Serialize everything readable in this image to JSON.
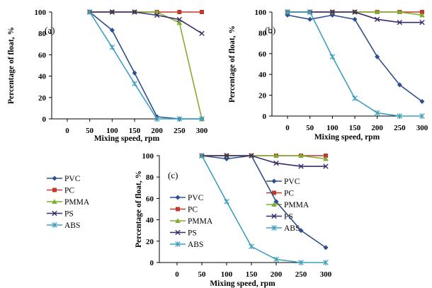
{
  "colors": {
    "PVC": "#2F4F8F",
    "PC": "#C0392B",
    "PMMA": "#7FAE2E",
    "PS": "#3B2A6B",
    "ABS": "#3E9FBF"
  },
  "markers": {
    "PVC": "diamond",
    "PC": "square",
    "PMMA": "triangle",
    "PS": "x",
    "ABS": "cross"
  },
  "chart_data": [
    {
      "type": "line",
      "panel": "(a)",
      "xlabel": "Mixing speed, rpm",
      "ylabel": "Percentage of float, %",
      "x": [
        0,
        50,
        100,
        150,
        200,
        250,
        300
      ],
      "yticks": [
        0,
        20,
        40,
        60,
        80,
        100
      ],
      "ylim": [
        0,
        100
      ],
      "legend": "left",
      "series": [
        {
          "name": "PVC",
          "values": [
            null,
            100,
            83,
            43,
            2,
            0,
            0
          ]
        },
        {
          "name": "PC",
          "values": [
            null,
            100,
            100,
            100,
            100,
            100,
            100
          ]
        },
        {
          "name": "PMMA",
          "values": [
            null,
            100,
            100,
            100,
            100,
            90,
            0
          ]
        },
        {
          "name": "PS",
          "values": [
            null,
            100,
            100,
            100,
            97,
            93,
            80
          ]
        },
        {
          "name": "ABS",
          "values": [
            null,
            100,
            67,
            33,
            0,
            0,
            0
          ]
        }
      ]
    },
    {
      "type": "line",
      "panel": "(b)",
      "xlabel": "Mixing speed, rpm",
      "ylabel": "Percentage of float, %",
      "x": [
        0,
        50,
        100,
        150,
        200,
        250,
        300
      ],
      "yticks": [
        0,
        20,
        40,
        60,
        80,
        100
      ],
      "ylim": [
        0,
        100
      ],
      "legend": "left",
      "series": [
        {
          "name": "PVC",
          "values": [
            97,
            93,
            97,
            93,
            57,
            30,
            14
          ]
        },
        {
          "name": "PC",
          "values": [
            100,
            100,
            100,
            100,
            100,
            100,
            100
          ]
        },
        {
          "name": "PMMA",
          "values": [
            100,
            100,
            100,
            100,
            100,
            100,
            97
          ]
        },
        {
          "name": "PS",
          "values": [
            100,
            100,
            100,
            100,
            93,
            90,
            90
          ]
        },
        {
          "name": "ABS",
          "values": [
            100,
            100,
            57,
            17,
            3,
            0,
            0
          ]
        }
      ]
    },
    {
      "type": "line",
      "panel": "(c)",
      "xlabel": "Mixing speed, rpm",
      "ylabel": "Percentage of float, %",
      "x": [
        0,
        50,
        100,
        150,
        200,
        250,
        300
      ],
      "yticks": [
        0,
        20,
        40,
        60,
        80,
        100
      ],
      "ylim": [
        0,
        100
      ],
      "legend": "left",
      "series": [
        {
          "name": "PVC",
          "values": [
            null,
            100,
            97,
            100,
            57,
            30,
            14
          ]
        },
        {
          "name": "PC",
          "values": [
            null,
            100,
            100,
            100,
            100,
            100,
            100
          ]
        },
        {
          "name": "PMMA",
          "values": [
            null,
            100,
            100,
            100,
            100,
            100,
            97
          ]
        },
        {
          "name": "PS",
          "values": [
            null,
            100,
            100,
            100,
            93,
            90,
            90
          ]
        },
        {
          "name": "ABS",
          "values": [
            null,
            100,
            57,
            15,
            3,
            0,
            0
          ]
        }
      ]
    }
  ]
}
